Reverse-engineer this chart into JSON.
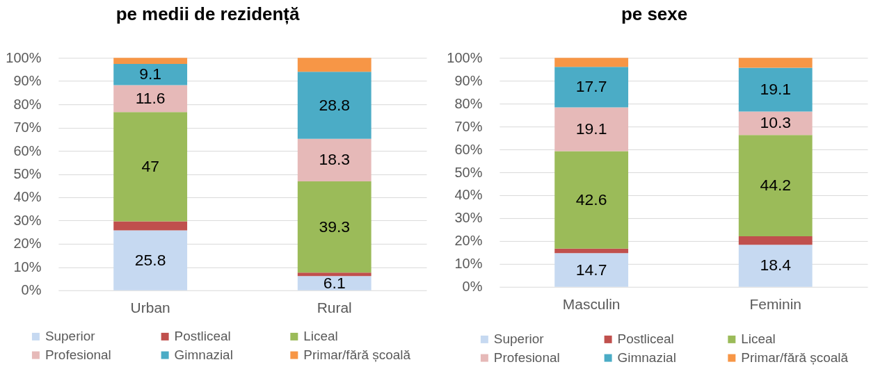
{
  "chart_data": [
    {
      "type": "bar",
      "stacked": true,
      "title": "pe medii de rezidență",
      "categories": [
        "Urban",
        "Rural"
      ],
      "series": [
        {
          "name": "Superior",
          "color": "#c6d9f1",
          "values": [
            25.8,
            6.1
          ],
          "value_labels": [
            "25.8",
            "6.1"
          ]
        },
        {
          "name": "Postliceal",
          "color": "#c0504d",
          "values": [
            3.9,
            1.5
          ],
          "value_labels": [
            null,
            null
          ]
        },
        {
          "name": "Liceal",
          "color": "#9bbb59",
          "values": [
            47,
            39.3
          ],
          "value_labels": [
            "47",
            "39.3"
          ]
        },
        {
          "name": "Profesional",
          "color": "#e6b9b8",
          "values": [
            11.6,
            18.3
          ],
          "value_labels": [
            "11.6",
            "18.3"
          ]
        },
        {
          "name": "Gimnazial",
          "color": "#4bacc6",
          "values": [
            9.1,
            28.8
          ],
          "value_labels": [
            "9.1",
            "28.8"
          ]
        },
        {
          "name": "Primar/fără școală",
          "color": "#f79646",
          "values": [
            2.6,
            6.0
          ],
          "value_labels": [
            null,
            null
          ]
        }
      ],
      "ylim": [
        0,
        100
      ],
      "yticks": [
        {
          "value": 0,
          "label": "0%"
        },
        {
          "value": 10,
          "label": "10%"
        },
        {
          "value": 20,
          "label": "20%"
        },
        {
          "value": 30,
          "label": "30%"
        },
        {
          "value": 40,
          "label": "40%"
        },
        {
          "value": 50,
          "label": "50%"
        },
        {
          "value": 60,
          "label": "60%"
        },
        {
          "value": 70,
          "label": "70%"
        },
        {
          "value": 80,
          "label": "80%"
        },
        {
          "value": 90,
          "label": "90%"
        },
        {
          "value": 100,
          "label": "100%"
        }
      ],
      "grid": "y",
      "legend": "bottom"
    },
    {
      "type": "bar",
      "stacked": true,
      "title": "pe sexe",
      "categories": [
        "Masculin",
        "Feminin"
      ],
      "series": [
        {
          "name": "Superior",
          "color": "#c6d9f1",
          "values": [
            14.7,
            18.4
          ],
          "value_labels": [
            "14.7",
            "18.4"
          ]
        },
        {
          "name": "Postliceal",
          "color": "#c0504d",
          "values": [
            2.0,
            3.7
          ],
          "value_labels": [
            null,
            null
          ]
        },
        {
          "name": "Liceal",
          "color": "#9bbb59",
          "values": [
            42.6,
            44.2
          ],
          "value_labels": [
            "42.6",
            "44.2"
          ]
        },
        {
          "name": "Profesional",
          "color": "#e6b9b8",
          "values": [
            19.1,
            10.3
          ],
          "value_labels": [
            "19.1",
            "10.3"
          ]
        },
        {
          "name": "Gimnazial",
          "color": "#4bacc6",
          "values": [
            17.7,
            19.1
          ],
          "value_labels": [
            "17.7",
            "19.1"
          ]
        },
        {
          "name": "Primar/fără școală",
          "color": "#f79646",
          "values": [
            3.9,
            4.3
          ],
          "value_labels": [
            null,
            null
          ]
        }
      ],
      "ylim": [
        0,
        100
      ],
      "yticks": [
        {
          "value": 0,
          "label": "0%"
        },
        {
          "value": 10,
          "label": "10%"
        },
        {
          "value": 20,
          "label": "20%"
        },
        {
          "value": 30,
          "label": "30%"
        },
        {
          "value": 40,
          "label": "40%"
        },
        {
          "value": 50,
          "label": "50%"
        },
        {
          "value": 60,
          "label": "60%"
        },
        {
          "value": 70,
          "label": "70%"
        },
        {
          "value": 80,
          "label": "80%"
        },
        {
          "value": 90,
          "label": "90%"
        },
        {
          "value": 100,
          "label": "100%"
        }
      ],
      "grid": "y",
      "legend": "bottom"
    }
  ]
}
